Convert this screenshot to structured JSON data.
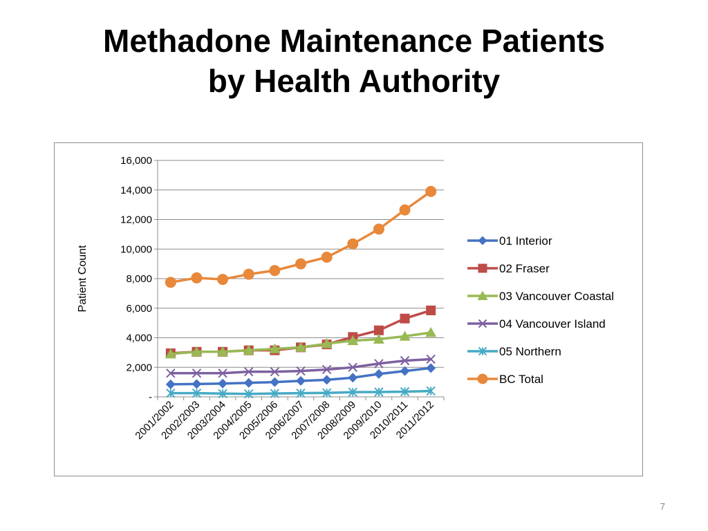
{
  "slide": {
    "title_line1": "Methadone Maintenance Patients",
    "title_line2": "by Health Authority",
    "page_number": "7"
  },
  "chart_data": {
    "type": "line",
    "title": "",
    "xlabel": "",
    "ylabel": "Patient Count",
    "categories": [
      "2001/2002",
      "2002/2003",
      "2003/2004",
      "2004/2005",
      "2005/2006",
      "2006/2007",
      "2007/2008",
      "2008/2009",
      "2009/2010",
      "2010/2011",
      "2011/2012"
    ],
    "ylim": [
      0,
      16000
    ],
    "yticks": [
      0,
      2000,
      4000,
      6000,
      8000,
      10000,
      12000,
      14000,
      16000
    ],
    "ytick_labels": [
      "-",
      "2,000",
      "4,000",
      "6,000",
      "8,000",
      "10,000",
      "12,000",
      "14,000",
      "16,000"
    ],
    "grid": "horizontal",
    "legend_position": "right",
    "series": [
      {
        "name": "01 Interior",
        "color": "#4472c4",
        "marker": "diamond",
        "values": [
          850,
          870,
          900,
          950,
          1000,
          1080,
          1150,
          1300,
          1550,
          1750,
          1950
        ]
      },
      {
        "name": "02 Fraser",
        "color": "#be4b48",
        "marker": "square",
        "values": [
          2950,
          3050,
          3050,
          3150,
          3150,
          3350,
          3550,
          4050,
          4500,
          5300,
          5850
        ]
      },
      {
        "name": "03 Vancouver Coastal",
        "color": "#98b954",
        "marker": "triangle",
        "values": [
          2900,
          3050,
          3050,
          3150,
          3250,
          3350,
          3600,
          3800,
          3900,
          4100,
          4350
        ]
      },
      {
        "name": "04 Vancouver Island",
        "color": "#7d60a0",
        "marker": "x",
        "values": [
          1600,
          1600,
          1600,
          1700,
          1700,
          1750,
          1850,
          2000,
          2250,
          2450,
          2550
        ]
      },
      {
        "name": "05 Northern",
        "color": "#46aac5",
        "marker": "star",
        "values": [
          250,
          250,
          220,
          200,
          230,
          250,
          270,
          320,
          330,
          350,
          400
        ]
      },
      {
        "name": "BC Total",
        "color": "#e8883a",
        "marker": "circle",
        "values": [
          7750,
          8050,
          7950,
          8300,
          8550,
          9000,
          9450,
          10350,
          11350,
          12650,
          13900
        ]
      }
    ]
  }
}
